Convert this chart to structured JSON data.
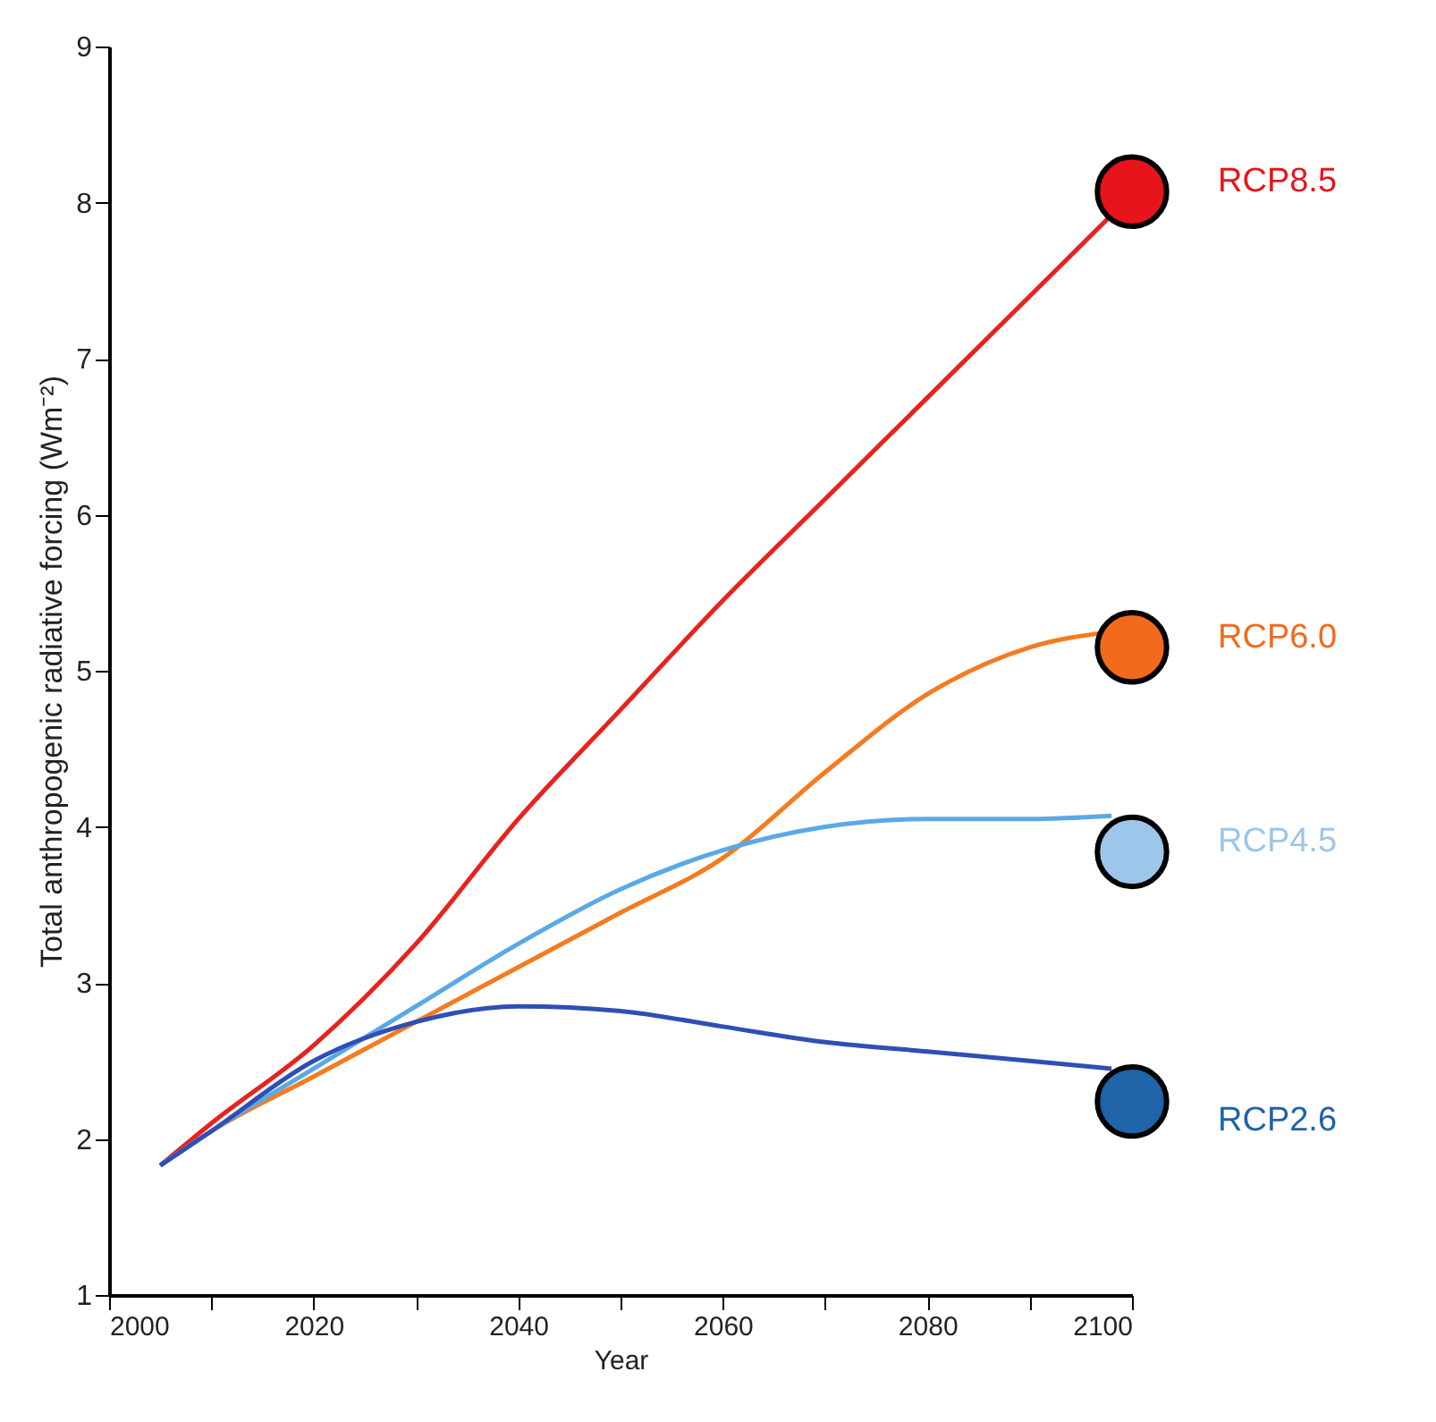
{
  "chart_data": {
    "type": "line",
    "xlabel": "Year",
    "ylabel": "Total anthropogenic radiative forcing (Wm⁻²)",
    "xlim": [
      2000,
      2100
    ],
    "ylim": [
      1,
      9
    ],
    "xticks": [
      2000,
      {
        "value": 2010,
        "label": null
      },
      2020,
      {
        "value": 2030,
        "label": null
      },
      2040,
      {
        "value": 2050,
        "label": null
      },
      2060,
      {
        "value": 2070,
        "label": null
      },
      2080,
      {
        "value": 2090,
        "label": null
      },
      2100
    ],
    "yticks": [
      1,
      2,
      3,
      4,
      5,
      6,
      7,
      8,
      9
    ],
    "grid": false,
    "line_style": "solid",
    "marker": "none",
    "series": [
      {
        "color": "#e8221e",
        "x": [
          2005,
          2010,
          2020,
          2030,
          2040,
          2050,
          2060,
          2070,
          2080,
          2090,
          2100
        ],
        "values": [
          1.83,
          2.1,
          2.6,
          3.25,
          4.05,
          4.75,
          5.45,
          6.1,
          6.75,
          7.4,
          8.05
        ]
      },
      {
        "color": "#f47b20",
        "x": [
          2005,
          2010,
          2020,
          2030,
          2040,
          2050,
          2060,
          2070,
          2080,
          2090,
          2098
        ],
        "values": [
          1.83,
          2.05,
          2.4,
          2.75,
          3.1,
          3.45,
          3.8,
          4.35,
          4.85,
          5.15,
          5.25
        ]
      },
      {
        "color": "#5aa9e6",
        "x": [
          2005,
          2010,
          2020,
          2030,
          2040,
          2050,
          2060,
          2070,
          2080,
          2090,
          2098
        ],
        "values": [
          1.83,
          2.05,
          2.45,
          2.85,
          3.25,
          3.6,
          3.85,
          4.0,
          4.05,
          4.05,
          4.07
        ]
      },
      {
        "color": "#2e4fb5",
        "x": [
          2005,
          2010,
          2020,
          2030,
          2040,
          2050,
          2060,
          2070,
          2080,
          2090,
          2098
        ],
        "values": [
          1.83,
          2.05,
          2.5,
          2.75,
          2.85,
          2.82,
          2.72,
          2.62,
          2.56,
          2.5,
          2.45
        ]
      },
      {
        "type": "scatter",
        "marker": "circle",
        "name": "RCP8.5",
        "color": "#e8141b",
        "x": [
          2100
        ],
        "values": [
          8.07
        ]
      },
      {
        "type": "scatter",
        "marker": "circle",
        "name": "RCP6.0",
        "color": "#f26a1b",
        "x": [
          2100
        ],
        "values": [
          5.15
        ]
      },
      {
        "type": "scatter",
        "marker": "circle",
        "name": "RCP4.5",
        "color": "#9ec5ea",
        "x": [
          2100
        ],
        "values": [
          3.84
        ]
      },
      {
        "type": "scatter",
        "marker": "circle",
        "name": "RCP2.6",
        "color": "#1f63a8",
        "x": [
          2100
        ],
        "values": [
          2.24
        ]
      }
    ]
  }
}
